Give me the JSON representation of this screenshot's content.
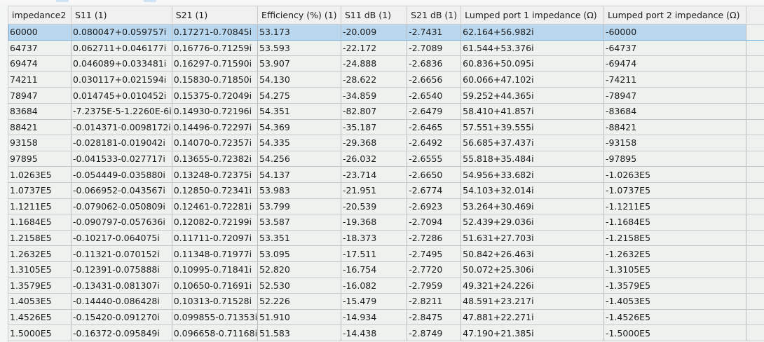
{
  "columns": [
    "impedance2",
    "S11 (1)",
    "S21 (1)",
    "Efficiency (%) (1)",
    "S11 dB (1)",
    "S21 dB (1)",
    "Lumped port 1 impedance (Ω)",
    "Lumped port 2 impedance (Ω)"
  ],
  "selected_row": 0,
  "colors": {
    "selection": "#b9d7ee",
    "cell_bg": "#eef2ef",
    "header_bg": "#f0f0f0"
  },
  "rows": [
    [
      "60000",
      "0.080047+0.059757i",
      "0.17271-0.70845i",
      "53.173",
      "-20.009",
      "-2.7431",
      "62.164+56.982i",
      "-60000"
    ],
    [
      "64737",
      "0.062711+0.046177i",
      "0.16776-0.71259i",
      "53.593",
      "-22.172",
      "-2.7089",
      "61.544+53.376i",
      "-64737"
    ],
    [
      "69474",
      "0.046089+0.033481i",
      "0.16297-0.71590i",
      "53.907",
      "-24.888",
      "-2.6836",
      "60.836+50.095i",
      "-69474"
    ],
    [
      "74211",
      "0.030117+0.021594i",
      "0.15830-0.71850i",
      "54.130",
      "-28.622",
      "-2.6656",
      "60.066+47.102i",
      "-74211"
    ],
    [
      "78947",
      "0.014745+0.010452i",
      "0.15375-0.72049i",
      "54.275",
      "-34.859",
      "-2.6540",
      "59.252+44.365i",
      "-78947"
    ],
    [
      "83684",
      "-7.2375E-5-1.2260E-6i",
      "0.14930-0.72196i",
      "54.351",
      "-82.807",
      "-2.6479",
      "58.410+41.857i",
      "-83684"
    ],
    [
      "88421",
      "-0.014371-0.0098172i",
      "0.14496-0.72297i",
      "54.369",
      "-35.187",
      "-2.6465",
      "57.551+39.555i",
      "-88421"
    ],
    [
      "93158",
      "-0.028181-0.019042i",
      "0.14070-0.72357i",
      "54.335",
      "-29.368",
      "-2.6492",
      "56.685+37.437i",
      "-93158"
    ],
    [
      "97895",
      "-0.041533-0.027717i",
      "0.13655-0.72382i",
      "54.256",
      "-26.032",
      "-2.6555",
      "55.818+35.484i",
      "-97895"
    ],
    [
      "1.0263E5",
      "-0.054449-0.035880i",
      "0.13248-0.72375i",
      "54.137",
      "-23.714",
      "-2.6650",
      "54.956+33.682i",
      "-1.0263E5"
    ],
    [
      "1.0737E5",
      "-0.066952-0.043567i",
      "0.12850-0.72341i",
      "53.983",
      "-21.951",
      "-2.6774",
      "54.103+32.014i",
      "-1.0737E5"
    ],
    [
      "1.1211E5",
      "-0.079062-0.050809i",
      "0.12461-0.72281i",
      "53.799",
      "-20.539",
      "-2.6923",
      "53.264+30.469i",
      "-1.1211E5"
    ],
    [
      "1.1684E5",
      "-0.090797-0.057636i",
      "0.12082-0.72199i",
      "53.587",
      "-19.368",
      "-2.7094",
      "52.439+29.036i",
      "-1.1684E5"
    ],
    [
      "1.2158E5",
      "-0.10217-0.064075i",
      "0.11711-0.72097i",
      "53.351",
      "-18.373",
      "-2.7286",
      "51.631+27.703i",
      "-1.2158E5"
    ],
    [
      "1.2632E5",
      "-0.11321-0.070152i",
      "0.11348-0.71977i",
      "53.095",
      "-17.511",
      "-2.7495",
      "50.842+26.463i",
      "-1.2632E5"
    ],
    [
      "1.3105E5",
      "-0.12391-0.075888i",
      "0.10995-0.71841i",
      "52.820",
      "-16.754",
      "-2.7720",
      "50.072+25.306i",
      "-1.3105E5"
    ],
    [
      "1.3579E5",
      "-0.13431-0.081307i",
      "0.10650-0.71691i",
      "52.530",
      "-16.082",
      "-2.7959",
      "49.321+24.226i",
      "-1.3579E5"
    ],
    [
      "1.4053E5",
      "-0.14440-0.086428i",
      "0.10313-0.71528i",
      "52.226",
      "-15.479",
      "-2.8211",
      "48.591+23.217i",
      "-1.4053E5"
    ],
    [
      "1.4526E5",
      "-0.15420-0.091270i",
      "0.099855-0.71353i",
      "51.910",
      "-14.934",
      "-2.8475",
      "47.881+22.271i",
      "-1.4526E5"
    ],
    [
      "1.5000E5",
      "-0.16372-0.095849i",
      "0.096658-0.71168i",
      "51.583",
      "-14.438",
      "-2.8749",
      "47.190+21.385i",
      "-1.5000E5"
    ]
  ]
}
